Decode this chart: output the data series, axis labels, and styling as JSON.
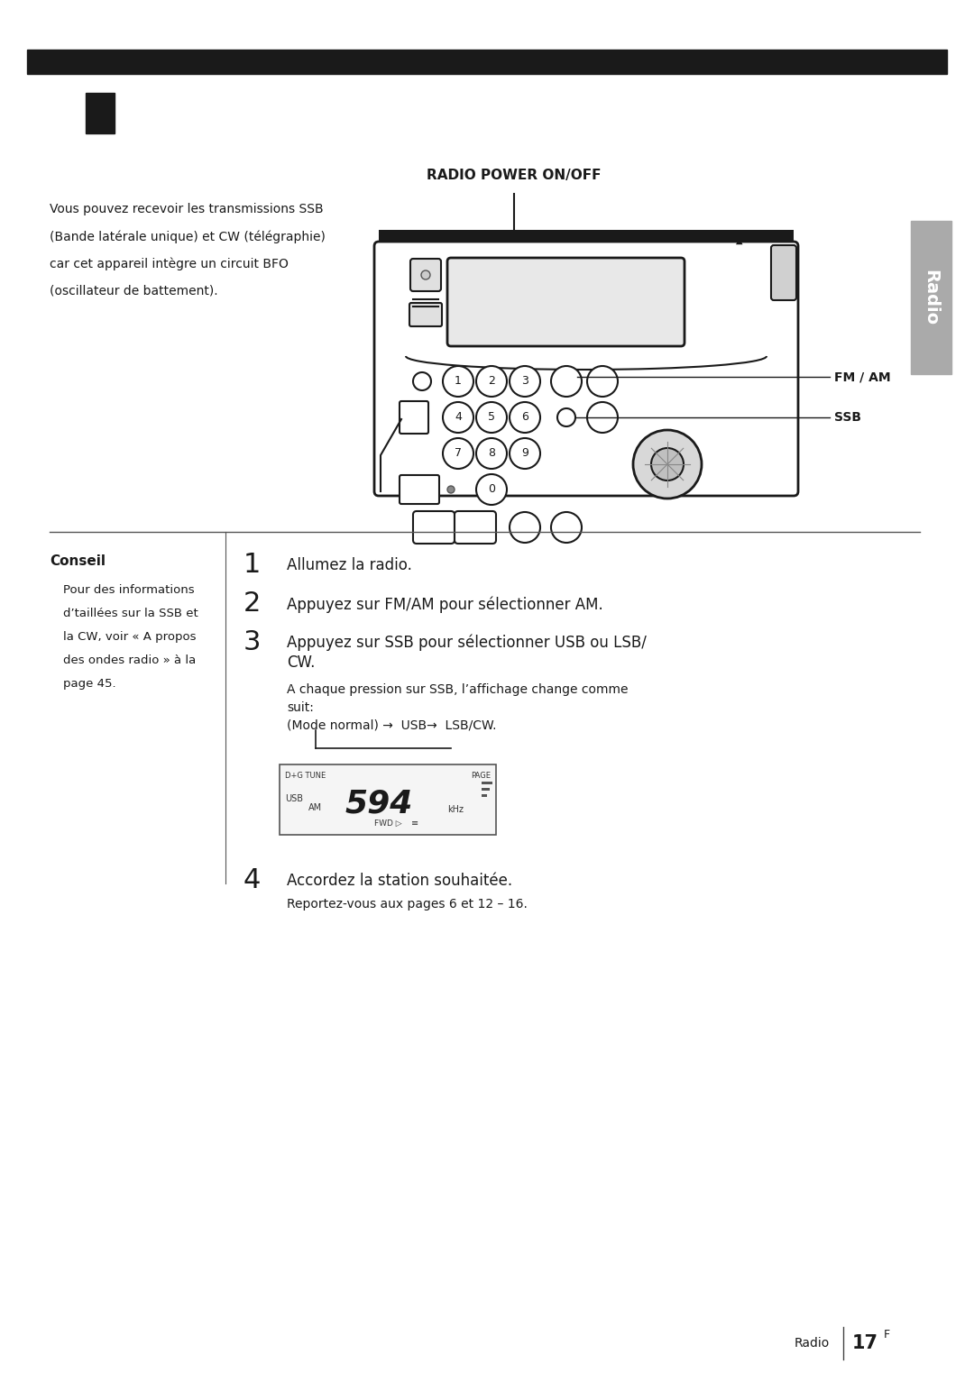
{
  "bg_color": "#ffffff",
  "top_bar_color": "#1a1a1a",
  "small_rect_color": "#1a1a1a",
  "page_title": "Radio",
  "page_number": "17",
  "page_number_sup": "F",
  "radio_power_label": "RADIO POWER ON/OFF",
  "fm_am_label": "FM / AM",
  "ssb_label": "SSB",
  "intro_text_line1": "Vous pouvez recevoir les transmissions SSB",
  "intro_text_line2": "(Bande latérale unique) et CW (télégraphie)",
  "intro_text_line3": "car cet appareil intègre un circuit BFO",
  "intro_text_line4": "(oscillateur de battement).",
  "conseil_title": "Conseil",
  "conseil_lines": [
    "    Pour des informations",
    "    d’taillées sur la SSB et",
    "    la CW, voir « A propos",
    "    des ondes radio » à la",
    "    page 45."
  ],
  "step1": "Allumez la radio.",
  "step2": "Appuyez sur FM/AM pour sélectionner AM.",
  "step3a": "Appuyez sur SSB pour sélectionner USB ou LSB/",
  "step3b": "CW.",
  "step3c_line1": "A chaque pression sur SSB, l’affichage change comme",
  "step3c_line2": "suit:",
  "step3c_line3": "(Mode normal) →  USB→  LSB/CW.",
  "step4": "Accordez la station souhaitée.",
  "step4b": "Reportez-vous aux pages 6 et 12 – 16.",
  "display_freq": "594",
  "display_unit": "kHz",
  "display_usb": "USB",
  "display_am": "AM",
  "display_tune": "D+G TUNE",
  "display_page": "PAGE",
  "display_fwd": "FWD ▷",
  "display_icon": "≡",
  "sidebar_color": "#aaaaaa",
  "text_color": "#1a1a1a",
  "line_color": "#555555"
}
